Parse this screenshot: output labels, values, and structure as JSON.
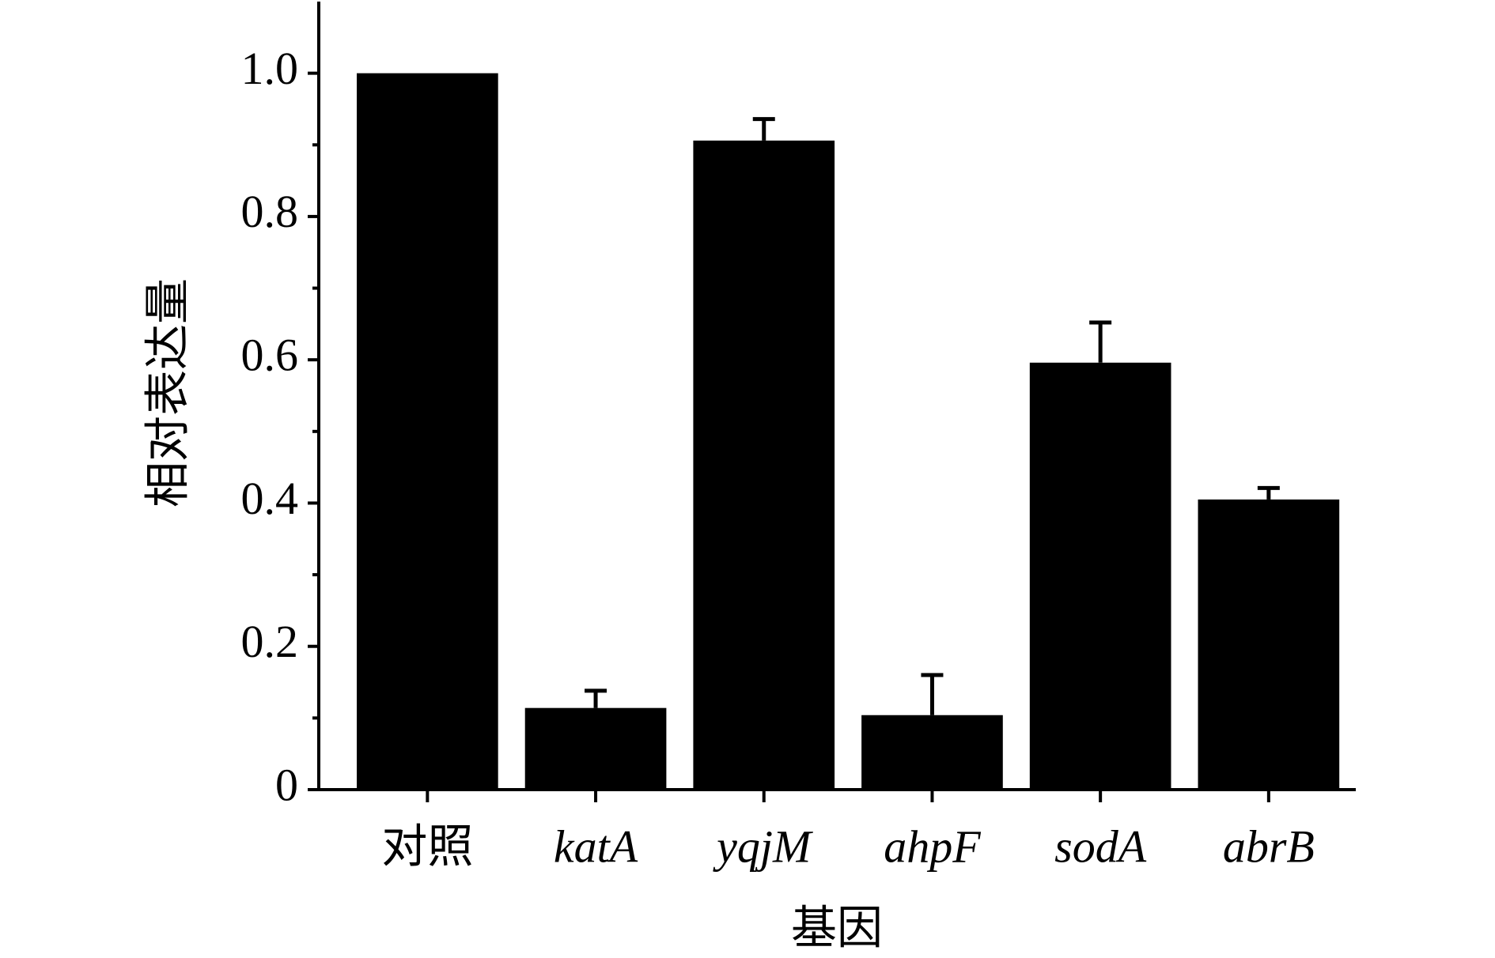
{
  "chart_data": {
    "type": "bar",
    "xlabel": "基因",
    "ylabel": "相对表达量",
    "categories": [
      "对照",
      "katA",
      "yqjM",
      "ahpF",
      "sodA",
      "abrB"
    ],
    "values": [
      1.0,
      0.114,
      0.906,
      0.104,
      0.596,
      0.405
    ],
    "errors": [
      0,
      0.024,
      0.03,
      0.056,
      0.056,
      0.016
    ],
    "color": "#000000",
    "ylim": [
      0,
      1.1
    ],
    "yticks": [
      0,
      0.2,
      0.4,
      0.6,
      0.8,
      {
        "value": 1,
        "label": "1.0"
      }
    ],
    "grid": false
  }
}
